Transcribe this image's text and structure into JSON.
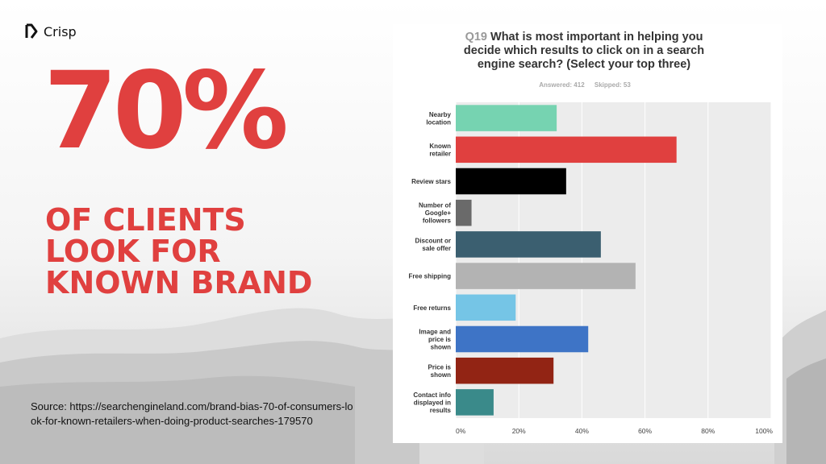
{
  "brand": {
    "name": "Crisp"
  },
  "headline": {
    "stat": "70%",
    "lines": [
      "OF CLIENTS",
      "LOOK FOR",
      "KNOWN BRAND"
    ]
  },
  "source": "Source: https://searchengineland.com/brand-bias-70-of-consumers-look-for-known-retailers-when-doing-product-searches-179570",
  "survey": {
    "question_number": "Q19",
    "question": "What is most important in helping you decide which results to click on in a search engine search? (Select your top three)",
    "answered": "Answered: 412",
    "skipped": "Skipped: 53"
  },
  "chart_data": {
    "type": "bar",
    "orientation": "horizontal",
    "categories": [
      [
        "Nearby",
        "location"
      ],
      [
        "Known",
        "retailer"
      ],
      [
        "Review stars"
      ],
      [
        "Number of",
        "Google+",
        "followers"
      ],
      [
        "Discount or",
        "sale offer"
      ],
      [
        "Free shipping"
      ],
      [
        "Free returns"
      ],
      [
        "Image and",
        "price is",
        "shown"
      ],
      [
        "Price is",
        "shown"
      ],
      [
        "Contact info",
        "displayed in",
        "results"
      ]
    ],
    "values": [
      32,
      70,
      35,
      5,
      46,
      57,
      19,
      42,
      31,
      12
    ],
    "colors": [
      "#76d3b1",
      "#e0403f",
      "#000000",
      "#6a6a6a",
      "#3b5f70",
      "#b3b3b3",
      "#75c5e6",
      "#3e74c6",
      "#922414",
      "#3a8a8a"
    ],
    "xlim": [
      0,
      100
    ],
    "xticks": [
      "0%",
      "20%",
      "40%",
      "60%",
      "80%",
      "100%"
    ],
    "grid": true
  },
  "colors": {
    "accent": "#e0403f",
    "plot_bg": "#ececec"
  }
}
